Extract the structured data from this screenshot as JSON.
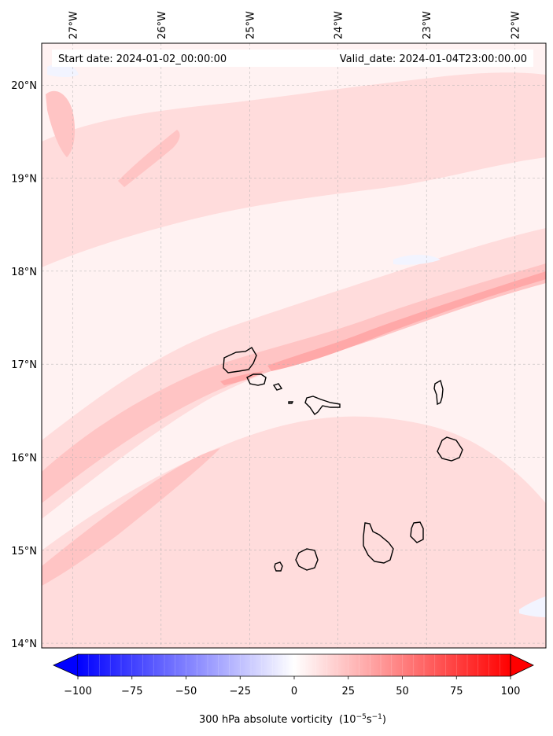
{
  "header": {
    "start_date": "Start date: 2024-01-02_00:00:00",
    "valid_date": "Valid_date: 2024-01-04T23:00:00.00"
  },
  "map": {
    "lon_range": [
      -27.35,
      -21.65
    ],
    "lat_range": [
      13.95,
      20.45
    ],
    "lon_ticks": [
      {
        "value": -27,
        "label": "27°W"
      },
      {
        "value": -26,
        "label": "26°W"
      },
      {
        "value": -25,
        "label": "25°W"
      },
      {
        "value": -24,
        "label": "24°W"
      },
      {
        "value": -23,
        "label": "23°W"
      },
      {
        "value": -22,
        "label": "22°W"
      }
    ],
    "lat_ticks": [
      {
        "value": 14,
        "label": "14°N"
      },
      {
        "value": 15,
        "label": "15°N"
      },
      {
        "value": 16,
        "label": "16°N"
      },
      {
        "value": 17,
        "label": "17°N"
      },
      {
        "value": 18,
        "label": "18°N"
      },
      {
        "value": 19,
        "label": "19°N"
      },
      {
        "value": 20,
        "label": "20°N"
      }
    ],
    "gridlines": true,
    "field_colors": {
      "background": "#fff2f2",
      "light": "#ffdcdc",
      "medium": "#ffc4c4",
      "strong": "#ffa8a8",
      "negative": "#f2f4ff"
    }
  },
  "colorbar": {
    "vmin": -100,
    "vmax": 100,
    "ticks": [
      {
        "value": -100,
        "label": "−100"
      },
      {
        "value": -75,
        "label": "−75"
      },
      {
        "value": -50,
        "label": "−50"
      },
      {
        "value": -25,
        "label": "−25"
      },
      {
        "value": 0,
        "label": "0"
      },
      {
        "value": 25,
        "label": "25"
      },
      {
        "value": 50,
        "label": "50"
      },
      {
        "value": 75,
        "label": "75"
      },
      {
        "value": 100,
        "label": "100"
      }
    ],
    "label": "300 hPa absolute vorticity",
    "units_base": "(10",
    "units_exp1": "−5",
    "units_mid": "s",
    "units_exp2": "−1",
    "units_end": ")",
    "color_low": "#0000ff",
    "color_mid": "#ffffff",
    "color_high": "#ff0000",
    "extend": "both"
  }
}
